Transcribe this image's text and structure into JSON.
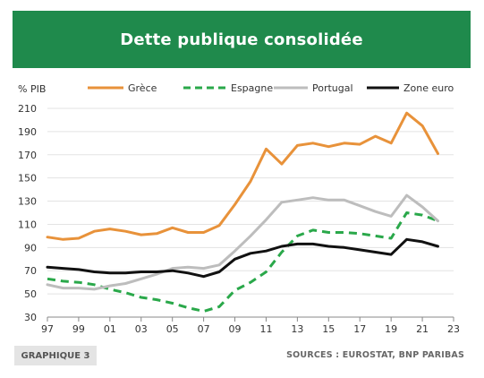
{
  "header": {
    "title": "Dette publique consolidée"
  },
  "footer": {
    "badge": "GRAPHIQUE 3",
    "source": "SOURCES : EUROSTAT, BNP PARIBAS"
  },
  "chart_data": {
    "type": "line",
    "title": "Dette publique consolidée",
    "ylabel": "% PIB",
    "xlabel": "",
    "ylim": [
      30,
      210
    ],
    "xlim": [
      1997,
      2023
    ],
    "grid": "horizontal",
    "legend_position": "top",
    "yticks": [
      30,
      50,
      70,
      90,
      110,
      130,
      150,
      170,
      190,
      210
    ],
    "xticks": [
      1997,
      1999,
      2001,
      2003,
      2005,
      2007,
      2009,
      2011,
      2013,
      2015,
      2017,
      2019,
      2021,
      2023
    ],
    "xtick_labels": [
      "97",
      "99",
      "01",
      "03",
      "05",
      "07",
      "09",
      "11",
      "13",
      "15",
      "17",
      "19",
      "21",
      "23"
    ],
    "x": [
      1997,
      1998,
      1999,
      2000,
      2001,
      2002,
      2003,
      2004,
      2005,
      2006,
      2007,
      2008,
      2009,
      2010,
      2011,
      2012,
      2013,
      2014,
      2015,
      2016,
      2017,
      2018,
      2019,
      2020,
      2021,
      2022
    ],
    "series": [
      {
        "name": "Grèce",
        "color": "#e8923a",
        "dash": "solid",
        "values": [
          99,
          97,
          98,
          104,
          106,
          104,
          101,
          102,
          107,
          103,
          103,
          109,
          127,
          147,
          175,
          162,
          178,
          180,
          177,
          180,
          179,
          186,
          180,
          206,
          195,
          171
        ]
      },
      {
        "name": "Espagne",
        "color": "#2aa84a",
        "dash": "dashed",
        "values": [
          63,
          61,
          60,
          58,
          54,
          51,
          47,
          45,
          42,
          38,
          35,
          39,
          53,
          60,
          69,
          86,
          100,
          105,
          103,
          103,
          102,
          100,
          98,
          120,
          118,
          113
        ]
      },
      {
        "name": "Portugal",
        "color": "#bdbdbd",
        "dash": "solid",
        "values": [
          58,
          55,
          55,
          54,
          57,
          59,
          63,
          67,
          72,
          73,
          72,
          75,
          87,
          100,
          114,
          129,
          131,
          133,
          131,
          131,
          126,
          121,
          117,
          135,
          125,
          113
        ]
      },
      {
        "name": "Zone euro",
        "color": "#111111",
        "dash": "solid",
        "values": [
          73,
          72,
          71,
          69,
          68,
          68,
          69,
          69,
          70,
          68,
          65,
          69,
          80,
          85,
          87,
          91,
          93,
          93,
          91,
          90,
          88,
          86,
          84,
          97,
          95,
          91
        ]
      }
    ]
  }
}
